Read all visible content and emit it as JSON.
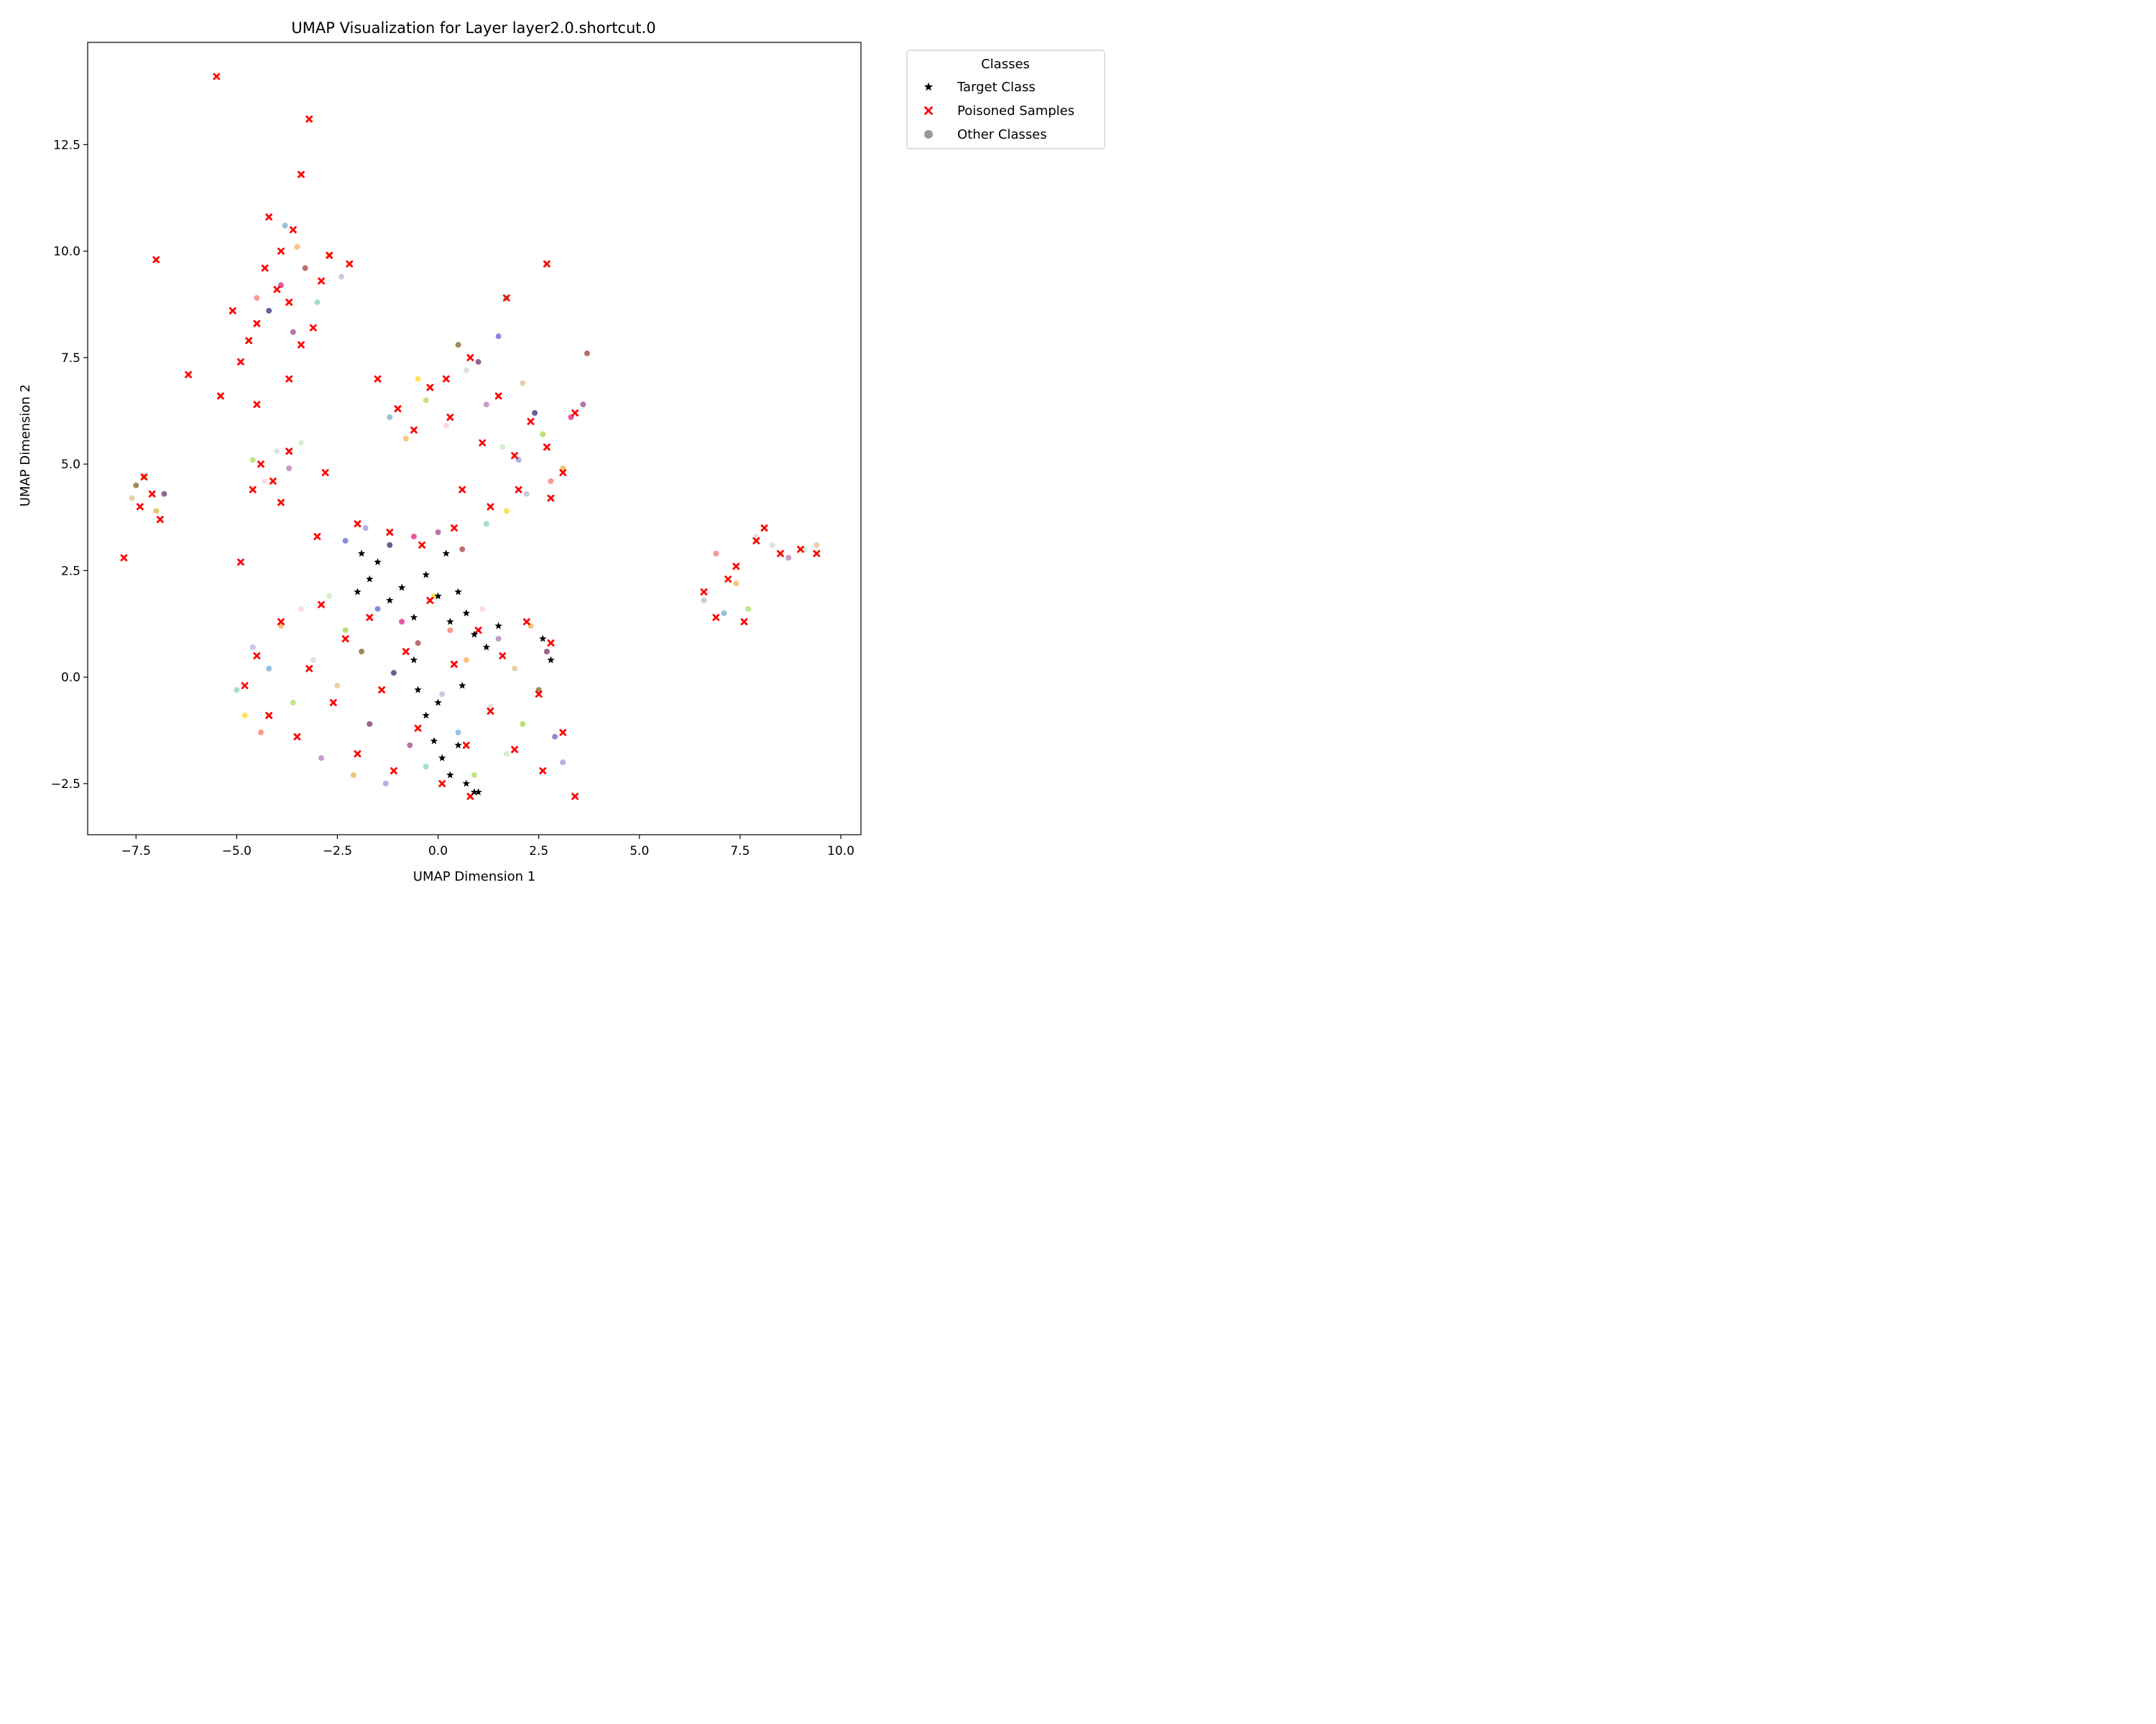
{
  "chart_data": {
    "type": "scatter",
    "title": "UMAP Visualization for Layer layer2.0.shortcut.0",
    "xlabel": "UMAP Dimension 1",
    "ylabel": "UMAP Dimension 2",
    "xlim": [
      -8.7,
      10.5
    ],
    "ylim": [
      -3.7,
      14.9
    ],
    "xticks": [
      -7.5,
      -5.0,
      -2.5,
      0.0,
      2.5,
      5.0,
      7.5,
      10.0
    ],
    "xtick_labels": [
      "−7.5",
      "−5.0",
      "−2.5",
      "0.0",
      "2.5",
      "5.0",
      "7.5",
      "10.0"
    ],
    "yticks": [
      -2.5,
      0.0,
      2.5,
      5.0,
      7.5,
      10.0,
      12.5
    ],
    "ytick_labels": [
      "−2.5",
      "0.0",
      "2.5",
      "5.0",
      "7.5",
      "10.0",
      "12.5"
    ],
    "grid": false,
    "legend": {
      "title": "Classes",
      "placement": "outside upper right",
      "entries": [
        {
          "label": "Target Class",
          "marker": "star",
          "color": "#000000"
        },
        {
          "label": "Poisoned Samples",
          "marker": "x",
          "color": "#ff0000"
        },
        {
          "label": "Other Classes",
          "marker": "circle",
          "color": "#808080"
        }
      ]
    },
    "other_class_colors": [
      "#8dd3c7",
      "#ffd92f",
      "#bebada",
      "#fb8072",
      "#80b1d3",
      "#fdb462",
      "#b3de69",
      "#fccde5",
      "#d9d9d9",
      "#bc80bd",
      "#ccebc5",
      "#e5c494",
      "#a6d854",
      "#e7ba52",
      "#8c6d31",
      "#7b4173",
      "#6b6ecf",
      "#9c9ede",
      "#393b79",
      "#e7298a",
      "#a55194",
      "#ad494a"
    ],
    "series": [
      {
        "name": "Other Classes",
        "points": [
          [
            -5.0,
            -0.3
          ],
          [
            -4.8,
            -0.9
          ],
          [
            -4.6,
            0.7
          ],
          [
            -4.4,
            -1.3
          ],
          [
            -4.2,
            0.2
          ],
          [
            -3.9,
            1.2
          ],
          [
            -3.6,
            -0.6
          ],
          [
            -3.4,
            1.6
          ],
          [
            -3.1,
            0.4
          ],
          [
            -2.9,
            -1.9
          ],
          [
            -2.7,
            1.9
          ],
          [
            -2.5,
            -0.2
          ],
          [
            -2.3,
            1.1
          ],
          [
            -2.1,
            -2.3
          ],
          [
            -1.9,
            0.6
          ],
          [
            -1.7,
            -1.1
          ],
          [
            -1.5,
            1.6
          ],
          [
            -1.3,
            -2.5
          ],
          [
            -1.1,
            0.1
          ],
          [
            -0.9,
            1.3
          ],
          [
            -0.7,
            -1.6
          ],
          [
            -0.5,
            0.8
          ],
          [
            -0.3,
            -2.1
          ],
          [
            -0.1,
            1.9
          ],
          [
            0.1,
            -0.4
          ],
          [
            0.3,
            1.1
          ],
          [
            0.5,
            -1.3
          ],
          [
            0.7,
            0.4
          ],
          [
            0.9,
            -2.3
          ],
          [
            1.1,
            1.6
          ],
          [
            1.3,
            -0.7
          ],
          [
            1.5,
            0.9
          ],
          [
            1.7,
            -1.8
          ],
          [
            1.9,
            0.2
          ],
          [
            2.1,
            -1.1
          ],
          [
            2.3,
            1.2
          ],
          [
            2.5,
            -0.3
          ],
          [
            2.7,
            0.6
          ],
          [
            2.9,
            -1.4
          ],
          [
            3.1,
            -2.0
          ],
          [
            -4.2,
            8.6
          ],
          [
            -3.9,
            9.2
          ],
          [
            -3.6,
            8.1
          ],
          [
            -3.3,
            9.6
          ],
          [
            -3.0,
            8.8
          ],
          [
            -2.7,
            9.9
          ],
          [
            -2.4,
            9.4
          ],
          [
            -4.5,
            8.9
          ],
          [
            -3.8,
            10.6
          ],
          [
            -3.5,
            10.1
          ],
          [
            -4.6,
            5.1
          ],
          [
            -4.3,
            4.6
          ],
          [
            -4.0,
            5.3
          ],
          [
            -3.7,
            4.9
          ],
          [
            -3.4,
            5.5
          ],
          [
            -7.6,
            4.2
          ],
          [
            -7.3,
            4.7
          ],
          [
            -7.0,
            3.9
          ],
          [
            -7.5,
            4.5
          ],
          [
            -6.8,
            4.3
          ],
          [
            -2.3,
            3.2
          ],
          [
            -1.8,
            3.5
          ],
          [
            -1.2,
            3.1
          ],
          [
            -0.6,
            3.3
          ],
          [
            0.0,
            3.4
          ],
          [
            0.6,
            3.0
          ],
          [
            1.2,
            3.6
          ],
          [
            1.7,
            3.9
          ],
          [
            2.2,
            4.3
          ],
          [
            2.8,
            4.6
          ],
          [
            -1.2,
            6.1
          ],
          [
            -0.8,
            5.6
          ],
          [
            -0.3,
            6.5
          ],
          [
            0.2,
            5.9
          ],
          [
            0.7,
            7.2
          ],
          [
            1.2,
            6.4
          ],
          [
            1.6,
            5.4
          ],
          [
            2.1,
            6.9
          ],
          [
            2.6,
            5.7
          ],
          [
            3.1,
            4.9
          ],
          [
            0.5,
            7.8
          ],
          [
            1.0,
            7.4
          ],
          [
            1.5,
            8.0
          ],
          [
            2.0,
            5.1
          ],
          [
            2.4,
            6.2
          ],
          [
            3.3,
            6.1
          ],
          [
            3.6,
            6.4
          ],
          [
            3.7,
            7.6
          ],
          [
            1.7,
            8.9
          ],
          [
            -0.5,
            7.0
          ],
          [
            6.6,
            1.8
          ],
          [
            6.9,
            2.9
          ],
          [
            7.1,
            1.5
          ],
          [
            7.4,
            2.2
          ],
          [
            7.7,
            1.6
          ],
          [
            7.9,
            3.3
          ],
          [
            8.3,
            3.1
          ],
          [
            8.7,
            2.8
          ],
          [
            9.1,
            3.0
          ],
          [
            9.4,
            3.1
          ]
        ]
      },
      {
        "name": "Poisoned Samples",
        "points": [
          [
            -5.5,
            14.1
          ],
          [
            -3.2,
            13.1
          ],
          [
            -3.4,
            11.8
          ],
          [
            -3.6,
            10.5
          ],
          [
            -2.7,
            9.9
          ],
          [
            -2.2,
            9.7
          ],
          [
            -4.3,
            9.6
          ],
          [
            -4.0,
            9.1
          ],
          [
            -3.7,
            8.8
          ],
          [
            -4.5,
            8.3
          ],
          [
            -4.9,
            7.4
          ],
          [
            -5.4,
            6.6
          ],
          [
            -3.4,
            7.8
          ],
          [
            -3.1,
            8.2
          ],
          [
            -4.2,
            10.8
          ],
          [
            -3.9,
            10.0
          ],
          [
            -2.9,
            9.3
          ],
          [
            -5.1,
            8.6
          ],
          [
            -4.7,
            7.9
          ],
          [
            -3.7,
            7.0
          ],
          [
            -6.2,
            7.1
          ],
          [
            -4.5,
            6.4
          ],
          [
            -7.0,
            9.8
          ],
          [
            -7.3,
            4.7
          ],
          [
            -7.1,
            4.3
          ],
          [
            -7.4,
            4.0
          ],
          [
            -6.9,
            3.7
          ],
          [
            -7.8,
            2.8
          ],
          [
            -4.4,
            5.0
          ],
          [
            -4.1,
            4.6
          ],
          [
            -3.7,
            5.3
          ],
          [
            -4.6,
            4.4
          ],
          [
            -3.9,
            4.1
          ],
          [
            -2.8,
            4.8
          ],
          [
            -4.9,
            2.7
          ],
          [
            -3.0,
            3.3
          ],
          [
            -2.0,
            3.6
          ],
          [
            -1.2,
            3.4
          ],
          [
            -0.4,
            3.1
          ],
          [
            0.4,
            3.5
          ],
          [
            -1.5,
            7.0
          ],
          [
            -1.0,
            6.3
          ],
          [
            -0.6,
            5.8
          ],
          [
            -0.2,
            6.8
          ],
          [
            0.3,
            6.1
          ],
          [
            0.8,
            7.5
          ],
          [
            1.1,
            5.5
          ],
          [
            1.5,
            6.6
          ],
          [
            1.9,
            5.2
          ],
          [
            2.3,
            6.0
          ],
          [
            2.7,
            5.4
          ],
          [
            3.1,
            4.8
          ],
          [
            3.4,
            6.2
          ],
          [
            2.0,
            4.4
          ],
          [
            1.3,
            4.0
          ],
          [
            0.6,
            4.4
          ],
          [
            2.8,
            4.2
          ],
          [
            1.7,
            8.9
          ],
          [
            2.7,
            9.7
          ],
          [
            0.2,
            7.0
          ],
          [
            -4.8,
            -0.2
          ],
          [
            -4.5,
            0.5
          ],
          [
            -4.2,
            -0.9
          ],
          [
            -3.9,
            1.3
          ],
          [
            -3.5,
            -1.4
          ],
          [
            -3.2,
            0.2
          ],
          [
            -2.9,
            1.7
          ],
          [
            -2.6,
            -0.6
          ],
          [
            -2.3,
            0.9
          ],
          [
            -2.0,
            -1.8
          ],
          [
            -1.7,
            1.4
          ],
          [
            -1.4,
            -0.3
          ],
          [
            -1.1,
            -2.2
          ],
          [
            -0.8,
            0.6
          ],
          [
            -0.5,
            -1.2
          ],
          [
            -0.2,
            1.8
          ],
          [
            0.1,
            -2.5
          ],
          [
            0.4,
            0.3
          ],
          [
            0.7,
            -1.6
          ],
          [
            1.0,
            1.1
          ],
          [
            1.3,
            -0.8
          ],
          [
            1.6,
            0.5
          ],
          [
            1.9,
            -1.7
          ],
          [
            2.2,
            1.3
          ],
          [
            2.5,
            -0.4
          ],
          [
            2.8,
            0.8
          ],
          [
            3.1,
            -1.3
          ],
          [
            3.4,
            -2.8
          ],
          [
            0.8,
            -2.8
          ],
          [
            2.6,
            -2.2
          ],
          [
            6.6,
            2.0
          ],
          [
            6.9,
            1.4
          ],
          [
            7.2,
            2.3
          ],
          [
            7.6,
            1.3
          ],
          [
            7.9,
            3.2
          ],
          [
            8.1,
            3.5
          ],
          [
            8.5,
            2.9
          ],
          [
            9.0,
            3.0
          ],
          [
            9.4,
            2.9
          ],
          [
            7.4,
            2.6
          ]
        ]
      },
      {
        "name": "Target Class",
        "points": [
          [
            -2.0,
            2.0
          ],
          [
            -1.9,
            2.9
          ],
          [
            -1.7,
            2.3
          ],
          [
            -1.5,
            2.7
          ],
          [
            -1.2,
            1.8
          ],
          [
            -0.9,
            2.1
          ],
          [
            -0.6,
            1.4
          ],
          [
            -0.3,
            2.4
          ],
          [
            0.0,
            1.9
          ],
          [
            0.2,
            2.9
          ],
          [
            0.3,
            1.3
          ],
          [
            0.5,
            2.0
          ],
          [
            0.7,
            1.5
          ],
          [
            0.9,
            1.0
          ],
          [
            1.2,
            0.7
          ],
          [
            1.5,
            1.2
          ],
          [
            -0.5,
            -0.3
          ],
          [
            -0.3,
            -0.9
          ],
          [
            -0.1,
            -1.5
          ],
          [
            0.1,
            -1.9
          ],
          [
            0.0,
            -0.6
          ],
          [
            0.3,
            -2.3
          ],
          [
            0.5,
            -1.6
          ],
          [
            0.7,
            -2.5
          ],
          [
            0.9,
            -2.7
          ],
          [
            1.0,
            -2.7
          ],
          [
            -0.6,
            0.4
          ],
          [
            0.6,
            -0.2
          ],
          [
            2.6,
            0.9
          ],
          [
            2.8,
            0.4
          ]
        ]
      }
    ]
  }
}
